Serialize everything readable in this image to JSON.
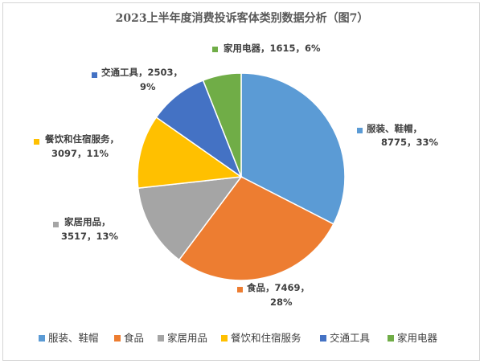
{
  "chart_data": {
    "type": "pie",
    "title": "2023上半年度消费投诉客体类别数据分析（图7）",
    "slices": [
      {
        "name": "服装、鞋帽",
        "value": 8775,
        "percent": "33%",
        "color": "#5B9BD5",
        "label_line1": "服装、鞋帽，",
        "label_line2": "8775，33%"
      },
      {
        "name": "食品",
        "value": 7469,
        "percent": "28%",
        "color": "#ED7D31",
        "label_line1": "食品，7469，",
        "label_line2": "28%"
      },
      {
        "name": "家居用品",
        "value": 3517,
        "percent": "13%",
        "color": "#A5A5A5",
        "label_line1": "家居用品，",
        "label_line2": "3517，13%"
      },
      {
        "name": "餐饮和住宿服务",
        "value": 3097,
        "percent": "11%",
        "color": "#FFC000",
        "label_line1": "餐饮和住宿服务，",
        "label_line2": "3097，11%"
      },
      {
        "name": "交通工具",
        "value": 2503,
        "percent": "9%",
        "color": "#4472C4",
        "label_line1": "交通工具，2503，",
        "label_line2": "9%"
      },
      {
        "name": "家用电器",
        "value": 1615,
        "percent": "6%",
        "color": "#70AD47",
        "label_line1": "家用电器，1615，6%",
        "label_line2": ""
      }
    ],
    "legend_position": "bottom"
  }
}
